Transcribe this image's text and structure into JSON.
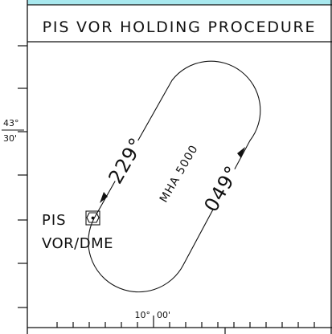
{
  "title": "PIS VOR HOLDING PROCEDURE",
  "latitude": {
    "deg": "43°",
    "min": "30'"
  },
  "longitude": {
    "deg": "10°",
    "min": "00'"
  },
  "fix": {
    "ident": "PIS",
    "type": "VOR/DME"
  },
  "holding": {
    "inbound_course": "229°",
    "outbound_course": "049°",
    "mha": "MHA 5000"
  },
  "colors": {
    "header_band": "#a8e8ee",
    "line": "#111111",
    "background": "#ffffff"
  },
  "icons": [
    "vor-dme-symbol-icon",
    "course-arrow-icon"
  ]
}
